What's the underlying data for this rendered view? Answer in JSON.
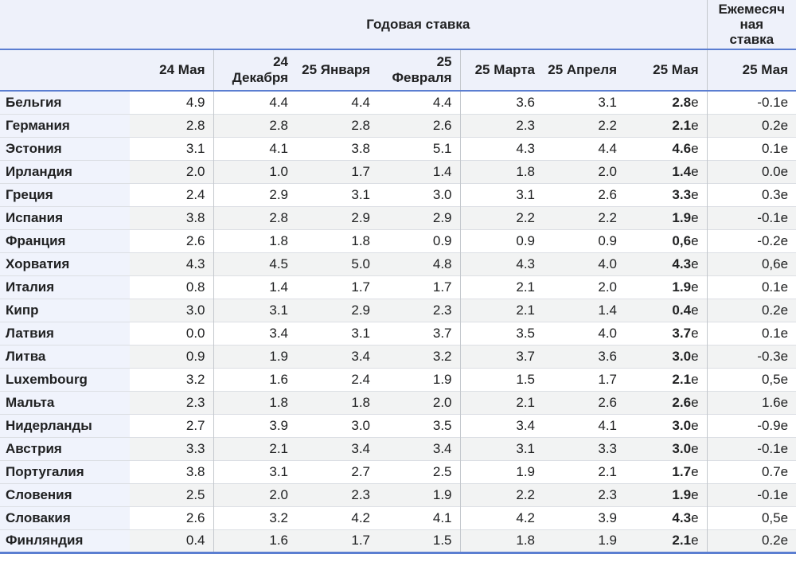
{
  "table": {
    "header_group_annual": "Годовая ставка",
    "header_group_monthly": "Ежемесячная ставка",
    "columns_annual": [
      "24 Мая",
      "24 Декабря",
      "25 Января",
      "25 Февраля",
      "25 Марта",
      "25 Апреля",
      "25 Мая"
    ],
    "column_monthly": "25 Мая",
    "estimate_suffix": "e",
    "rows": [
      {
        "country": "Бельгия",
        "annual": [
          "4.9",
          "4.4",
          "4.4",
          "4.4",
          "3.6",
          "3.1"
        ],
        "may25": "2.8",
        "monthly": "-0.1"
      },
      {
        "country": "Германия",
        "annual": [
          "2.8",
          "2.8",
          "2.8",
          "2.6",
          "2.3",
          "2.2"
        ],
        "may25": "2.1",
        "monthly": "0.2"
      },
      {
        "country": "Эстония",
        "annual": [
          "3.1",
          "4.1",
          "3.8",
          "5.1",
          "4.3",
          "4.4"
        ],
        "may25": "4.6",
        "monthly": "0.1"
      },
      {
        "country": "Ирландия",
        "annual": [
          "2.0",
          "1.0",
          "1.7",
          "1.4",
          "1.8",
          "2.0"
        ],
        "may25": "1.4",
        "monthly": "0.0"
      },
      {
        "country": "Греция",
        "annual": [
          "2.4",
          "2.9",
          "3.1",
          "3.0",
          "3.1",
          "2.6"
        ],
        "may25": "3.3",
        "monthly": "0.3"
      },
      {
        "country": "Испания",
        "annual": [
          "3.8",
          "2.8",
          "2.9",
          "2.9",
          "2.2",
          "2.2"
        ],
        "may25": "1.9",
        "monthly": "-0.1"
      },
      {
        "country": "Франция",
        "annual": [
          "2.6",
          "1.8",
          "1.8",
          "0.9",
          "0.9",
          "0.9"
        ],
        "may25": "0,6",
        "monthly": "-0.2"
      },
      {
        "country": "Хорватия",
        "annual": [
          "4.3",
          "4.5",
          "5.0",
          "4.8",
          "4.3",
          "4.0"
        ],
        "may25": "4.3",
        "monthly": "0,6"
      },
      {
        "country": "Италия",
        "annual": [
          "0.8",
          "1.4",
          "1.7",
          "1.7",
          "2.1",
          "2.0"
        ],
        "may25": "1.9",
        "monthly": "0.1"
      },
      {
        "country": "Кипр",
        "annual": [
          "3.0",
          "3.1",
          "2.9",
          "2.3",
          "2.1",
          "1.4"
        ],
        "may25": "0.4",
        "monthly": "0.2"
      },
      {
        "country": "Латвия",
        "annual": [
          "0.0",
          "3.4",
          "3.1",
          "3.7",
          "3.5",
          "4.0"
        ],
        "may25": "3.7",
        "monthly": "0.1"
      },
      {
        "country": "Литва",
        "annual": [
          "0.9",
          "1.9",
          "3.4",
          "3.2",
          "3.7",
          "3.6"
        ],
        "may25": "3.0",
        "monthly": "-0.3"
      },
      {
        "country": "Luxembourg",
        "annual": [
          "3.2",
          "1.6",
          "2.4",
          "1.9",
          "1.5",
          "1.7"
        ],
        "may25": "2.1",
        "monthly": "0,5"
      },
      {
        "country": "Мальта",
        "annual": [
          "2.3",
          "1.8",
          "1.8",
          "2.0",
          "2.1",
          "2.6"
        ],
        "may25": "2.6",
        "monthly": "1.6"
      },
      {
        "country": "Нидерланды",
        "annual": [
          "2.7",
          "3.9",
          "3.0",
          "3.5",
          "3.4",
          "4.1"
        ],
        "may25": "3.0",
        "monthly": "-0.9"
      },
      {
        "country": "Австрия",
        "annual": [
          "3.3",
          "2.1",
          "3.4",
          "3.4",
          "3.1",
          "3.3"
        ],
        "may25": "3.0",
        "monthly": "-0.1"
      },
      {
        "country": "Португалия",
        "annual": [
          "3.8",
          "3.1",
          "2.7",
          "2.5",
          "1.9",
          "2.1"
        ],
        "may25": "1.7",
        "monthly": "0.7"
      },
      {
        "country": "Словения",
        "annual": [
          "2.5",
          "2.0",
          "2.3",
          "1.9",
          "2.2",
          "2.3"
        ],
        "may25": "1.9",
        "monthly": "-0.1"
      },
      {
        "country": "Словакия",
        "annual": [
          "2.6",
          "3.2",
          "4.2",
          "4.1",
          "4.2",
          "3.9"
        ],
        "may25": "4.3",
        "monthly": "0,5"
      },
      {
        "country": "Финляндия",
        "annual": [
          "0.4",
          "1.6",
          "1.7",
          "1.5",
          "1.8",
          "1.9"
        ],
        "may25": "2.1",
        "monthly": "0.2"
      }
    ]
  },
  "colors": {
    "header_bg": "#eef1fa",
    "name_cell_bg": "#f0f3fc",
    "stripe_bg": "#f2f3f3",
    "blue_border": "#5b7ed1",
    "vertical_divider": "#c4c8cd",
    "row_divider": "#dcdfe4",
    "text": "#202122"
  },
  "chart_data": {
    "type": "table",
    "title": "Годовая ставка / Ежемесячная ставка",
    "column_groups": [
      "Годовая ставка",
      "Ежемесячная ставка"
    ],
    "columns": [
      "24 Мая",
      "24 Декабря",
      "25 Января",
      "25 Февраля",
      "25 Марта",
      "25 Апреля",
      "25 Мая (e)",
      "Ежемесячная ставка 25 Мая (e)"
    ],
    "row_labels": [
      "Бельгия",
      "Германия",
      "Эстония",
      "Ирландия",
      "Греция",
      "Испания",
      "Франция",
      "Хорватия",
      "Италия",
      "Кипр",
      "Латвия",
      "Литва",
      "Luxembourg",
      "Мальта",
      "Нидерланды",
      "Австрия",
      "Португалия",
      "Словения",
      "Словакия",
      "Финляндия"
    ],
    "values": [
      [
        4.9,
        4.4,
        4.4,
        4.4,
        3.6,
        3.1,
        2.8,
        -0.1
      ],
      [
        2.8,
        2.8,
        2.8,
        2.6,
        2.3,
        2.2,
        2.1,
        0.2
      ],
      [
        3.1,
        4.1,
        3.8,
        5.1,
        4.3,
        4.4,
        4.6,
        0.1
      ],
      [
        2.0,
        1.0,
        1.7,
        1.4,
        1.8,
        2.0,
        1.4,
        0.0
      ],
      [
        2.4,
        2.9,
        3.1,
        3.0,
        3.1,
        2.6,
        3.3,
        0.3
      ],
      [
        3.8,
        2.8,
        2.9,
        2.9,
        2.2,
        2.2,
        1.9,
        -0.1
      ],
      [
        2.6,
        1.8,
        1.8,
        0.9,
        0.9,
        0.9,
        0.6,
        -0.2
      ],
      [
        4.3,
        4.5,
        5.0,
        4.8,
        4.3,
        4.0,
        4.3,
        0.6
      ],
      [
        0.8,
        1.4,
        1.7,
        1.7,
        2.1,
        2.0,
        1.9,
        0.1
      ],
      [
        3.0,
        3.1,
        2.9,
        2.3,
        2.1,
        1.4,
        0.4,
        0.2
      ],
      [
        0.0,
        3.4,
        3.1,
        3.7,
        3.5,
        4.0,
        3.7,
        0.1
      ],
      [
        0.9,
        1.9,
        3.4,
        3.2,
        3.7,
        3.6,
        3.0,
        -0.3
      ],
      [
        3.2,
        1.6,
        2.4,
        1.9,
        1.5,
        1.7,
        2.1,
        0.5
      ],
      [
        2.3,
        1.8,
        1.8,
        2.0,
        2.1,
        2.6,
        2.6,
        1.6
      ],
      [
        2.7,
        3.9,
        3.0,
        3.5,
        3.4,
        4.1,
        3.0,
        -0.9
      ],
      [
        3.3,
        2.1,
        3.4,
        3.4,
        3.1,
        3.3,
        3.0,
        -0.1
      ],
      [
        3.8,
        3.1,
        2.7,
        2.5,
        1.9,
        2.1,
        1.7,
        0.7
      ],
      [
        2.5,
        2.0,
        2.3,
        1.9,
        2.2,
        2.3,
        1.9,
        -0.1
      ],
      [
        2.6,
        3.2,
        4.2,
        4.1,
        4.2,
        3.9,
        4.3,
        0.5
      ],
      [
        0.4,
        1.6,
        1.7,
        1.5,
        1.8,
        1.9,
        2.1,
        0.2
      ]
    ]
  }
}
